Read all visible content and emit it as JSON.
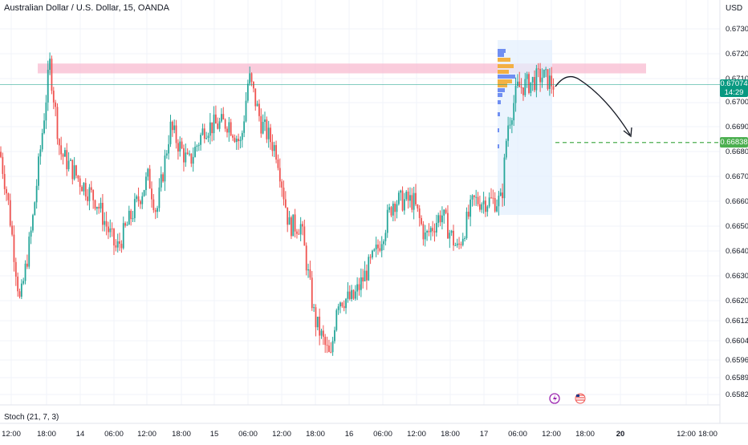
{
  "chart_title": "Australian Dollar / U.S. Dollar, 15, OANDA",
  "currency": "USD",
  "price_axis": [
    "0.67300",
    "0.67200",
    "0.67100",
    "0.67000",
    "0.66900",
    "0.66800",
    "0.66700",
    "0.66600",
    "0.66500",
    "0.66400",
    "0.66300",
    "0.66200",
    "0.66120",
    "0.66040",
    "0.65960",
    "0.65890",
    "0.65825"
  ],
  "current_price": {
    "value": "0.67074",
    "countdown": "14:29",
    "color": "#089981"
  },
  "target_price": {
    "value": "0.66838",
    "color": "#4caf50"
  },
  "time_axis": [
    "12:00",
    "18:00",
    "14",
    "06:00",
    "12:00",
    "18:00",
    "15",
    "06:00",
    "12:00",
    "18:00",
    "16",
    "06:00",
    "12:00",
    "18:00",
    "17",
    "06:00",
    "12:00",
    "18:00",
    "20",
    "12:00",
    "18:00"
  ],
  "indicator_label": "Stoch (21, 7, 3)",
  "event_icons": [
    "lightning-event-icon",
    "us-flag-event-icon"
  ],
  "resistance_zone": {
    "from": 0.6712,
    "to": 0.6716,
    "color": "#f8bbd0"
  },
  "colors": {
    "up": "#26a69a",
    "down": "#ef5350",
    "profile_blue": "#5b7cf0",
    "profile_orange": "#f5a623"
  },
  "chart_data": {
    "type": "candlestick",
    "symbol": "AUD/USD",
    "interval": "15",
    "ylim": [
      0.6581,
      0.6735
    ],
    "last": 0.67074,
    "target": 0.66838
  }
}
